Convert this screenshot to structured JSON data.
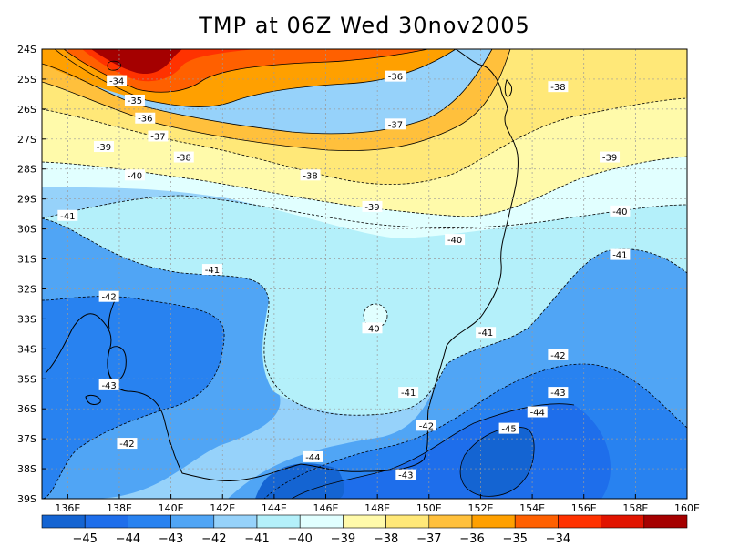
{
  "title": "TMP at 06Z Wed 30nov2005",
  "axes": {
    "lat_ticks": [
      "24S",
      "25S",
      "26S",
      "27S",
      "28S",
      "29S",
      "30S",
      "31S",
      "32S",
      "33S",
      "34S",
      "35S",
      "36S",
      "37S",
      "38S",
      "39S"
    ],
    "lon_ticks": [
      "136E",
      "138E",
      "140E",
      "142E",
      "144E",
      "146E",
      "148E",
      "150E",
      "152E",
      "154E",
      "156E",
      "158E",
      "160E"
    ]
  },
  "contour_labels": [
    {
      "text": "-34",
      "lon": 137.9,
      "lat": -25.05
    },
    {
      "text": "-35",
      "lon": 138.6,
      "lat": -25.7
    },
    {
      "text": "-36",
      "lon": 139.0,
      "lat": -26.3
    },
    {
      "text": "-37",
      "lon": 139.5,
      "lat": -26.9
    },
    {
      "text": "-38",
      "lon": 140.5,
      "lat": -27.6
    },
    {
      "text": "-39",
      "lon": 137.4,
      "lat": -27.25
    },
    {
      "text": "-40",
      "lon": 138.6,
      "lat": -28.2
    },
    {
      "text": "-41",
      "lon": 136.0,
      "lat": -29.55
    },
    {
      "text": "-36",
      "lon": 148.7,
      "lat": -24.9
    },
    {
      "text": "-37",
      "lon": 148.7,
      "lat": -26.5
    },
    {
      "text": "-38",
      "lon": 145.4,
      "lat": -28.2
    },
    {
      "text": "-39",
      "lon": 147.8,
      "lat": -29.25
    },
    {
      "text": "-38",
      "lon": 155.0,
      "lat": -25.25
    },
    {
      "text": "-39",
      "lon": 157.0,
      "lat": -27.6
    },
    {
      "text": "-40",
      "lon": 157.4,
      "lat": -29.4
    },
    {
      "text": "-40",
      "lon": 151.0,
      "lat": -30.35
    },
    {
      "text": "-41",
      "lon": 141.6,
      "lat": -31.35
    },
    {
      "text": "-41",
      "lon": 157.4,
      "lat": -30.85
    },
    {
      "text": "-42",
      "lon": 137.6,
      "lat": -32.25
    },
    {
      "text": "-40",
      "lon": 147.8,
      "lat": -33.3
    },
    {
      "text": "-41",
      "lon": 152.2,
      "lat": -33.45
    },
    {
      "text": "-42",
      "lon": 155.0,
      "lat": -34.2
    },
    {
      "text": "-43",
      "lon": 137.6,
      "lat": -35.2
    },
    {
      "text": "-41",
      "lon": 149.2,
      "lat": -35.45
    },
    {
      "text": "-43",
      "lon": 155.0,
      "lat": -35.45
    },
    {
      "text": "-44",
      "lon": 154.2,
      "lat": -36.1
    },
    {
      "text": "-42",
      "lon": 149.9,
      "lat": -36.55
    },
    {
      "text": "-45",
      "lon": 153.1,
      "lat": -36.65
    },
    {
      "text": "-42",
      "lon": 138.3,
      "lat": -37.15
    },
    {
      "text": "-44",
      "lon": 145.5,
      "lat": -37.6
    },
    {
      "text": "-43",
      "lon": 149.1,
      "lat": -38.2
    }
  ],
  "colorbar": {
    "colors": [
      "#1464d2",
      "#1e6eeb",
      "#2882f0",
      "#50a5f5",
      "#96d2fa",
      "#b4f0fa",
      "#e1ffff",
      "#fffaaa",
      "#ffe878",
      "#ffc03c",
      "#ffa000",
      "#ff6000",
      "#ff3200",
      "#e11400",
      "#a50000"
    ],
    "labels": [
      "-45",
      "-44",
      "-43",
      "-42",
      "-41",
      "-40",
      "-39",
      "-38",
      "-37",
      "-36",
      "-35",
      "-34"
    ]
  }
}
